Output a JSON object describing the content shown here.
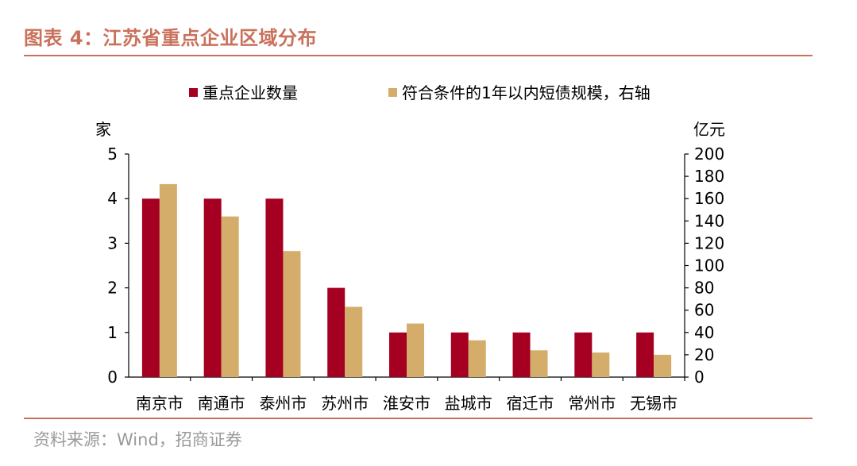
{
  "header": {
    "title": "图表 4：江苏省重点企业区域分布"
  },
  "footer": {
    "source": "资料来源：Wind，招商证券"
  },
  "colors": {
    "accent": "#c9715b",
    "series1": "#a50021",
    "series2": "#d5ad6b"
  },
  "chart_data": {
    "type": "bar",
    "categories": [
      "南京市",
      "南通市",
      "泰州市",
      "苏州市",
      "淮安市",
      "盐城市",
      "宿迁市",
      "常州市",
      "无锡市"
    ],
    "series": [
      {
        "name": "重点企业数量",
        "axis": "left",
        "values": [
          4,
          4,
          4,
          2,
          1,
          1,
          1,
          1,
          1
        ]
      },
      {
        "name": "符合条件的1年以内短债规模，右轴",
        "axis": "right",
        "values": [
          173,
          144,
          113,
          63,
          48,
          33,
          24,
          22,
          20
        ]
      }
    ],
    "ylabel": "家",
    "y2label": "亿元",
    "ylim": [
      0,
      5
    ],
    "y2lim": [
      0,
      200
    ],
    "yticks": [
      "0",
      "1",
      "2",
      "3",
      "4",
      "5"
    ],
    "y2ticks": [
      "0",
      "20",
      "40",
      "60",
      "80",
      "100",
      "120",
      "140",
      "160",
      "180",
      "200"
    ],
    "legend_position": "top-center",
    "grid": false
  }
}
